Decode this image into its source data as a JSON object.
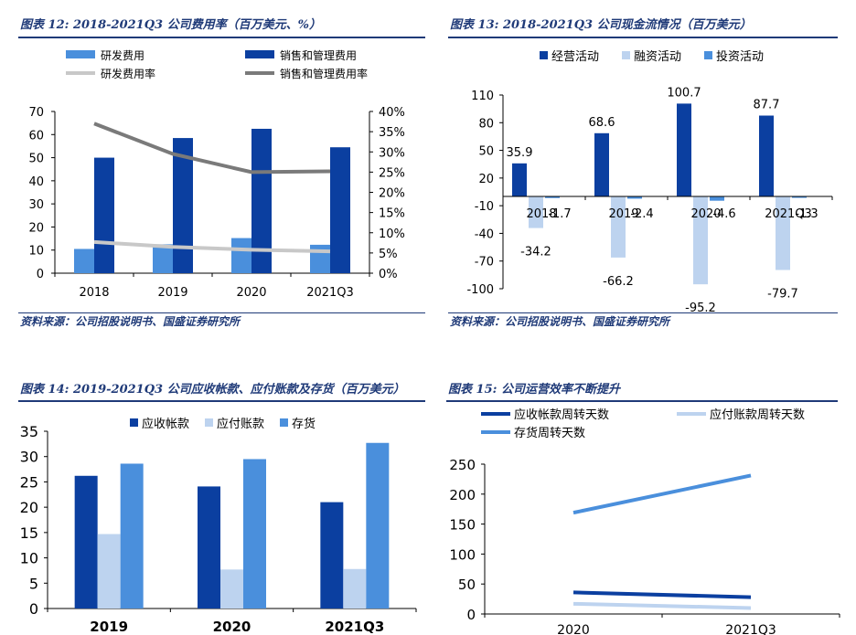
{
  "charts": {
    "c12": {
      "title": "图表 12:  2018-2021Q3 公司费用率（百万美元、%）",
      "source": "资料来源：公司招股说明书、国盛证券研究所"
    },
    "c13": {
      "title": "图表 13:  2018-2021Q3 公司现金流情况（百万美元）",
      "source": "资料来源：公司招股说明书、国盛证券研究所"
    },
    "c14": {
      "title": "图表 14:  2019-2021Q3 公司应收帐款、应付账款及存货（百万美元）"
    },
    "c15": {
      "title": "图表 15:  公司运营效率不断提升"
    }
  },
  "chart_data": [
    {
      "type": "bar",
      "categories": [
        "2018",
        "2019",
        "2020",
        "2021Q3"
      ],
      "series": [
        {
          "name": "研发费用",
          "kind": "bar",
          "axis": "left",
          "color": "#4a8fdc",
          "values": [
            10.5,
            12.5,
            15.2,
            12.3
          ]
        },
        {
          "name": "销售和管理费用",
          "kind": "bar",
          "axis": "left",
          "color": "#0b3fa0",
          "values": [
            50.0,
            58.5,
            62.5,
            54.5
          ]
        },
        {
          "name": "研发费用率",
          "kind": "line",
          "axis": "right",
          "color": "#c8c8c8",
          "values": [
            7.7,
            6.5,
            5.8,
            5.4
          ]
        },
        {
          "name": "销售和管理费用率",
          "kind": "line",
          "axis": "right",
          "color": "#7a7a7a",
          "values": [
            37.0,
            29.5,
            25.0,
            25.2
          ]
        }
      ],
      "ylim": [
        0,
        70
      ],
      "yticks": [
        "0",
        "10",
        "20",
        "30",
        "40",
        "50",
        "60",
        "70"
      ],
      "y2lim": [
        0,
        40
      ],
      "y2ticks": [
        "0%",
        "5%",
        "10%",
        "15%",
        "20%",
        "25%",
        "30%",
        "35%",
        "40%"
      ],
      "legend": "top",
      "grid": false
    },
    {
      "type": "bar",
      "categories": [
        "2018",
        "2019",
        "2020",
        "2021Q3"
      ],
      "series": [
        {
          "name": "经营活动",
          "color": "#0b3fa0",
          "values": [
            35.9,
            68.6,
            100.7,
            87.7
          ],
          "labels": [
            "35.9",
            "68.6",
            "100.7",
            "87.7"
          ]
        },
        {
          "name": "融资活动",
          "color": "#bdd3ef",
          "values": [
            -34.2,
            -66.2,
            -95.2,
            -79.7
          ],
          "labels": [
            "-34.2",
            "-66.2",
            "-95.2",
            "-79.7"
          ]
        },
        {
          "name": "投资活动",
          "color": "#4a8fdc",
          "values": [
            -1.7,
            -2.4,
            -4.6,
            -1.3
          ],
          "labels": [
            "-1.7",
            "-2.4",
            "-4.6",
            "-1.3"
          ]
        }
      ],
      "ylim": [
        -100,
        110
      ],
      "yticks": [
        "110",
        "80",
        "50",
        "20",
        "-10",
        "-40",
        "-70",
        "-100"
      ],
      "legend": "top",
      "grid": false
    },
    {
      "type": "bar",
      "categories": [
        "2019",
        "2020",
        "2021Q3"
      ],
      "series": [
        {
          "name": "应收帐款",
          "color": "#0b3fa0",
          "values": [
            26.2,
            24.1,
            21.0
          ]
        },
        {
          "name": "应付账款",
          "color": "#bdd3ef",
          "values": [
            14.7,
            7.7,
            7.8
          ]
        },
        {
          "name": "存货",
          "color": "#4a8fdc",
          "values": [
            28.6,
            29.5,
            32.7
          ]
        }
      ],
      "ylim": [
        0,
        35
      ],
      "yticks": [
        "0",
        "5",
        "10",
        "15",
        "20",
        "25",
        "30",
        "35"
      ],
      "legend": "top",
      "grid": false
    },
    {
      "type": "line",
      "categories": [
        "2020",
        "2021Q3"
      ],
      "series": [
        {
          "name": "应收帐款周转天数",
          "color": "#0b3fa0",
          "values": [
            36,
            28
          ]
        },
        {
          "name": "应付账款周转天数",
          "color": "#bdd3ef",
          "values": [
            17,
            10
          ]
        },
        {
          "name": "存货周转天数",
          "color": "#4a8fdc",
          "values": [
            169,
            231
          ]
        }
      ],
      "ylim": [
        0,
        250
      ],
      "yticks": [
        "0",
        "50",
        "100",
        "150",
        "200",
        "250"
      ],
      "legend": "top",
      "grid": false
    }
  ]
}
